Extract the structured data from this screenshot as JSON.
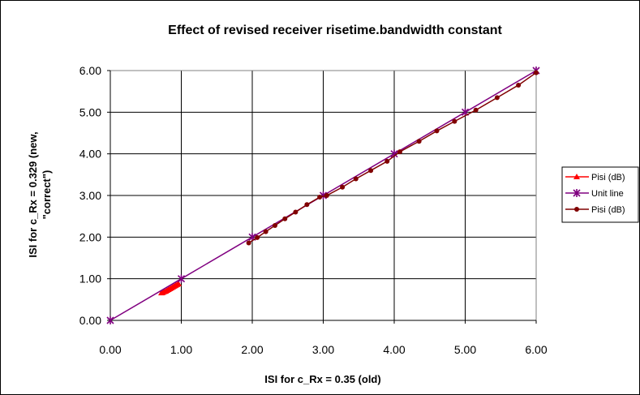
{
  "chart_data": {
    "type": "scatter",
    "title": "Effect of revised receiver risetime.bandwidth constant",
    "xlabel": "ISI for c_Rx = 0.35 (old)",
    "ylabel_lines": [
      "ISI for c_Rx = 0.329 (new,",
      "\"correct\")"
    ],
    "xlim": [
      0,
      6
    ],
    "ylim": [
      0,
      6
    ],
    "x_ticks": [
      0,
      1,
      2,
      3,
      4,
      5,
      6
    ],
    "y_ticks": [
      0,
      1,
      2,
      3,
      4,
      5,
      6
    ],
    "x_tick_labels": [
      "0.00",
      "1.00",
      "2.00",
      "3.00",
      "4.00",
      "5.00",
      "6.00"
    ],
    "y_tick_labels": [
      "0.00",
      "1.00",
      "2.00",
      "3.00",
      "4.00",
      "5.00",
      "6.00"
    ],
    "grid": true,
    "legend_position": "right",
    "series": [
      {
        "name": "Pisi (dB)",
        "color": "#ff0000",
        "marker": "triangle",
        "line": false,
        "points": [
          [
            0.72,
            0.66
          ],
          [
            0.74,
            0.67
          ],
          [
            0.76,
            0.69
          ],
          [
            0.78,
            0.7
          ],
          [
            0.8,
            0.72
          ],
          [
            0.82,
            0.74
          ],
          [
            0.84,
            0.76
          ],
          [
            0.86,
            0.78
          ],
          [
            0.88,
            0.8
          ],
          [
            0.9,
            0.82
          ],
          [
            0.92,
            0.84
          ],
          [
            0.94,
            0.86
          ],
          [
            0.96,
            0.88
          ]
        ]
      },
      {
        "name": "Unit line",
        "color": "#800080",
        "marker": "star",
        "line": true,
        "points": [
          [
            0,
            0
          ],
          [
            1,
            1
          ],
          [
            2,
            2
          ],
          [
            3,
            3
          ],
          [
            4,
            4
          ],
          [
            5,
            5
          ],
          [
            6,
            6
          ]
        ]
      },
      {
        "name": "Pisi (dB)",
        "color": "#800000",
        "marker": "circle",
        "line": true,
        "points": [
          [
            1.95,
            1.86
          ],
          [
            2.07,
            1.99
          ],
          [
            2.19,
            2.13
          ],
          [
            2.32,
            2.28
          ],
          [
            2.46,
            2.44
          ],
          [
            2.61,
            2.6
          ],
          [
            2.77,
            2.78
          ],
          [
            2.95,
            2.96
          ],
          [
            3.05,
            3.0
          ],
          [
            3.27,
            3.2
          ],
          [
            3.46,
            3.4
          ],
          [
            3.67,
            3.6
          ],
          [
            3.9,
            3.82
          ],
          [
            4.08,
            4.05
          ],
          [
            4.35,
            4.3
          ],
          [
            4.6,
            4.55
          ],
          [
            4.85,
            4.78
          ],
          [
            5.15,
            5.05
          ],
          [
            5.45,
            5.35
          ],
          [
            5.75,
            5.65
          ],
          [
            6.0,
            5.95
          ]
        ]
      }
    ]
  }
}
